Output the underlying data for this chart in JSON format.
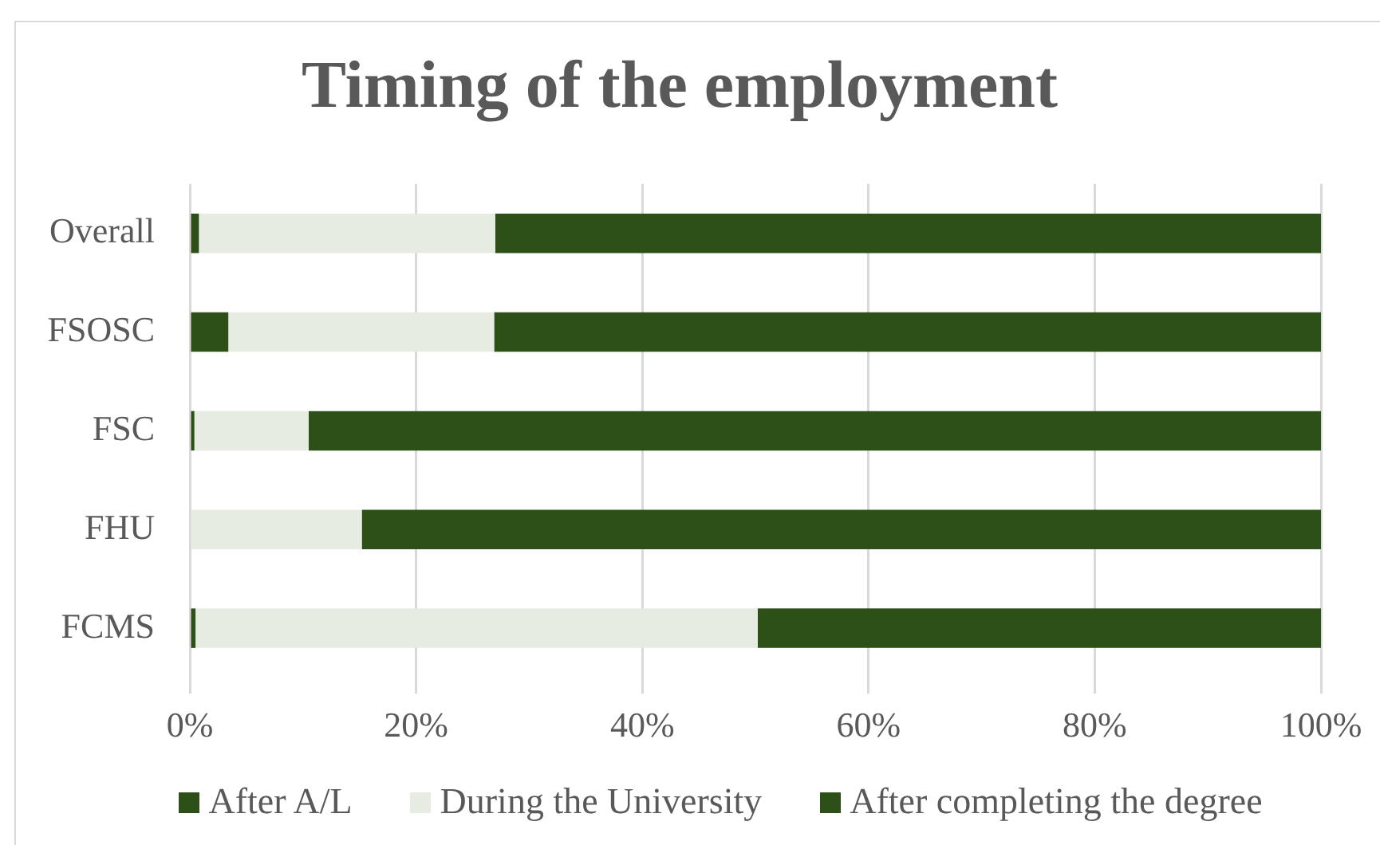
{
  "chart_data": {
    "type": "bar",
    "title": "Timing of the employment",
    "orientation": "horizontal",
    "stacked": true,
    "categories": [
      "Overall",
      "FSOSC",
      "FSC",
      "FHU",
      "FCMS"
    ],
    "series": [
      {
        "name": "After A/L",
        "color": "#2d5019",
        "values": [
          0.8,
          3.4,
          0.4,
          0,
          0.5
        ]
      },
      {
        "name": "During the University",
        "color": "#e6ece1",
        "values": [
          26.2,
          23.5,
          10.1,
          15.2,
          49.7
        ]
      },
      {
        "name": "After completing the degree",
        "color": "#2d5019",
        "values": [
          73.0,
          73.1,
          89.5,
          84.8,
          49.8
        ]
      }
    ],
    "xlim": [
      0,
      100
    ],
    "xticks": [
      {
        "value": 0,
        "label": "0%"
      },
      {
        "value": 20,
        "label": "20%"
      },
      {
        "value": 40,
        "label": "40%"
      },
      {
        "value": 60,
        "label": "60%"
      },
      {
        "value": 80,
        "label": "80%"
      },
      {
        "value": 100,
        "label": "100%"
      }
    ],
    "grid": "x",
    "legend": "bottom"
  }
}
